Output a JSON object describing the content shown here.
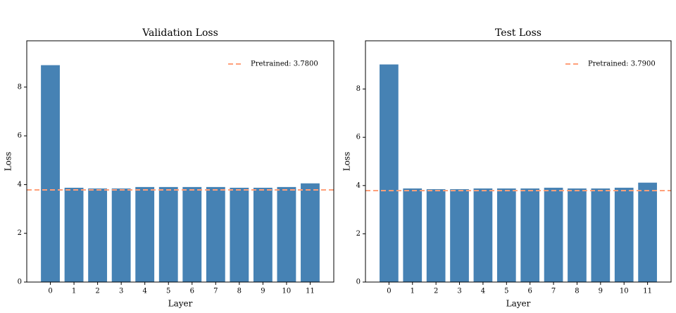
{
  "chart_data": [
    {
      "type": "bar",
      "title": "Validation Loss",
      "xlabel": "Layer",
      "ylabel": "Loss",
      "categories": [
        "0",
        "1",
        "2",
        "3",
        "4",
        "5",
        "6",
        "7",
        "8",
        "9",
        "10",
        "11"
      ],
      "values": [
        8.9,
        3.87,
        3.84,
        3.84,
        3.9,
        3.9,
        3.9,
        3.9,
        3.87,
        3.87,
        3.9,
        4.05
      ],
      "color": "#4682b4",
      "ylim": [
        0,
        9.9
      ],
      "yticks": [
        0,
        2,
        4,
        6,
        8
      ],
      "reference_line": {
        "value": 3.78,
        "label": "Pretrained: 3.7800",
        "color": "#ffa07a"
      },
      "legend": "upper right"
    },
    {
      "type": "bar",
      "title": "Test Loss",
      "xlabel": "Layer",
      "ylabel": "Loss",
      "categories": [
        "0",
        "1",
        "2",
        "3",
        "4",
        "5",
        "6",
        "7",
        "8",
        "9",
        "10",
        "11"
      ],
      "values": [
        9.02,
        3.88,
        3.85,
        3.85,
        3.88,
        3.88,
        3.88,
        3.91,
        3.88,
        3.88,
        3.91,
        4.12
      ],
      "color": "#4682b4",
      "ylim": [
        0,
        10
      ],
      "yticks": [
        0,
        2,
        4,
        6,
        8
      ],
      "reference_line": {
        "value": 3.79,
        "label": "Pretrained: 3.7900",
        "color": "#ffa07a"
      },
      "legend": "upper right"
    }
  ]
}
